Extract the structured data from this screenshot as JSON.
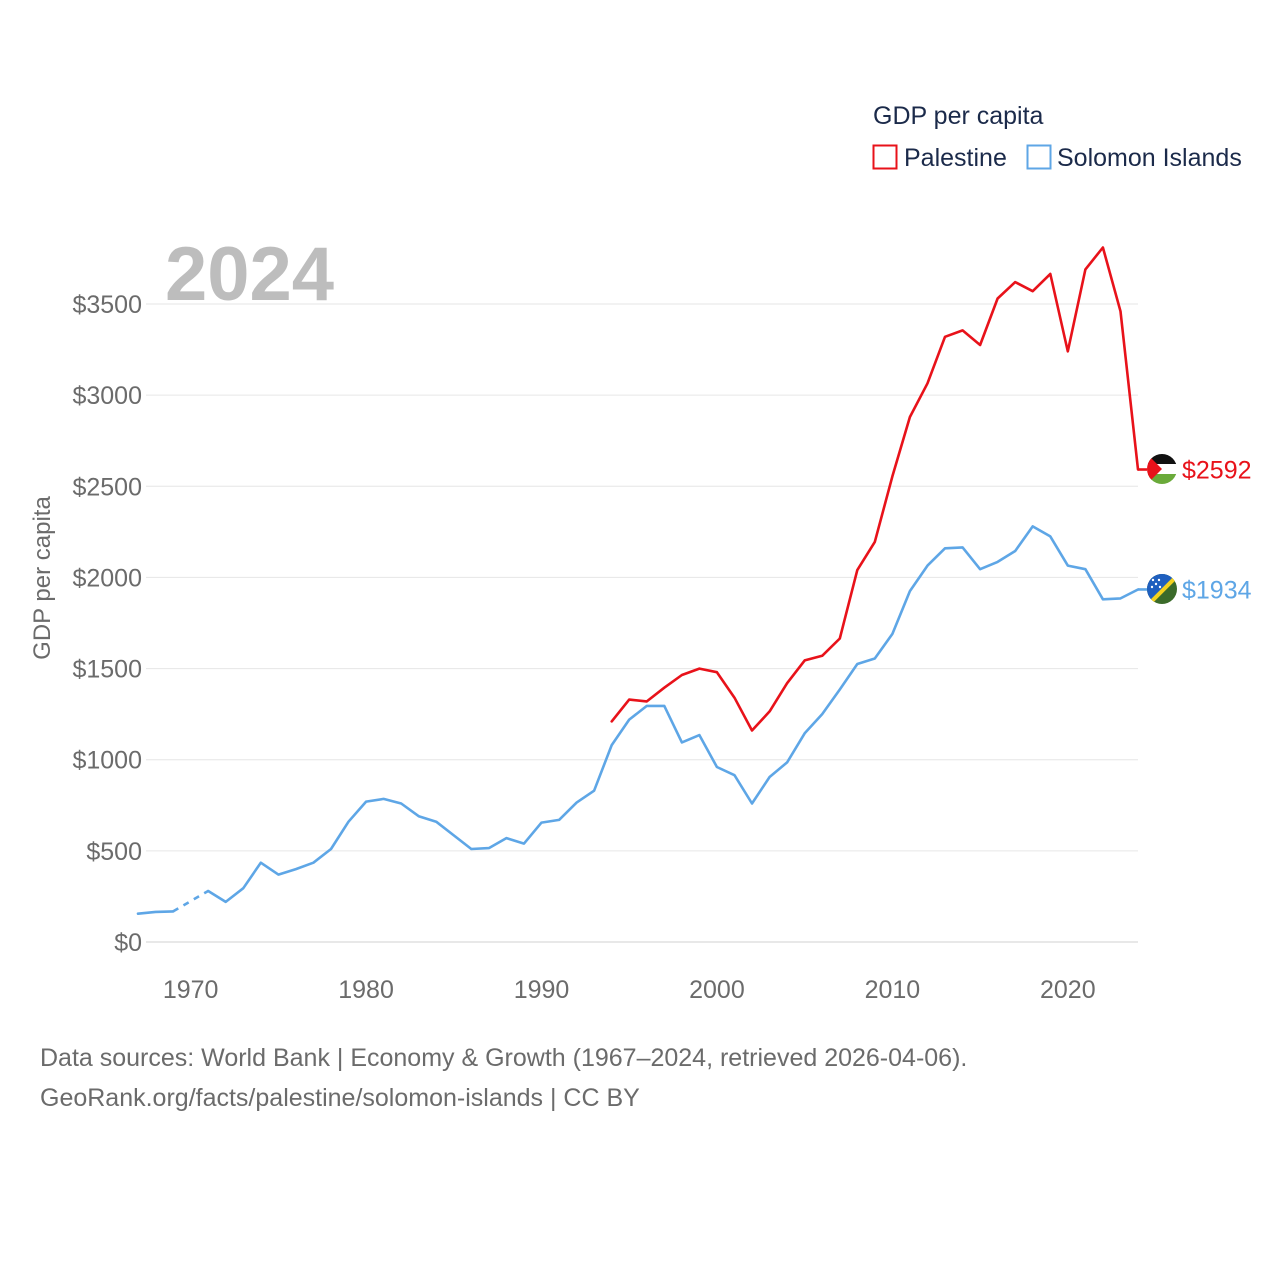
{
  "chart_data": {
    "type": "line",
    "title": "",
    "year_label": "2024",
    "legend": {
      "title": "GDP per capita",
      "placement": "top-right",
      "entries": [
        {
          "name": "Palestine",
          "color": "#e8121a"
        },
        {
          "name": "Solomon Islands",
          "color": "#5ea6e6"
        }
      ]
    },
    "ylabel": "GDP per capita",
    "xlabel": "",
    "ylim": [
      0,
      3500
    ],
    "xlim": [
      1967,
      2024
    ],
    "y_ticks": [
      {
        "value": 0,
        "label": "$0"
      },
      {
        "value": 500,
        "label": "$500"
      },
      {
        "value": 1000,
        "label": "$1000"
      },
      {
        "value": 1500,
        "label": "$1500"
      },
      {
        "value": 2000,
        "label": "$2000"
      },
      {
        "value": 2500,
        "label": "$2500"
      },
      {
        "value": 3000,
        "label": "$3000"
      },
      {
        "value": 3500,
        "label": "$3500"
      }
    ],
    "x_ticks": [
      {
        "value": 1970,
        "label": "1970"
      },
      {
        "value": 1980,
        "label": "1980"
      },
      {
        "value": 1990,
        "label": "1990"
      },
      {
        "value": 2000,
        "label": "2000"
      },
      {
        "value": 2010,
        "label": "2010"
      },
      {
        "value": 2020,
        "label": "2020"
      }
    ],
    "grid": true,
    "series": [
      {
        "name": "Palestine",
        "color": "#e8121a",
        "end_label": "$2592",
        "flag": "palestine-flag",
        "points": [
          [
            1994,
            1210
          ],
          [
            1995,
            1330
          ],
          [
            1996,
            1320
          ],
          [
            1997,
            1395
          ],
          [
            1998,
            1465
          ],
          [
            1999,
            1500
          ],
          [
            2000,
            1480
          ],
          [
            2001,
            1340
          ],
          [
            2002,
            1160
          ],
          [
            2003,
            1265
          ],
          [
            2004,
            1420
          ],
          [
            2005,
            1545
          ],
          [
            2006,
            1570
          ],
          [
            2007,
            1665
          ],
          [
            2008,
            2040
          ],
          [
            2009,
            2195
          ],
          [
            2010,
            2555
          ],
          [
            2011,
            2880
          ],
          [
            2012,
            3065
          ],
          [
            2013,
            3320
          ],
          [
            2014,
            3355
          ],
          [
            2015,
            3275
          ],
          [
            2016,
            3530
          ],
          [
            2017,
            3620
          ],
          [
            2018,
            3570
          ],
          [
            2019,
            3665
          ],
          [
            2020,
            3240
          ],
          [
            2021,
            3690
          ],
          [
            2022,
            3810
          ],
          [
            2023,
            3460
          ],
          [
            2024,
            2592
          ]
        ]
      },
      {
        "name": "Solomon Islands",
        "color": "#5ea6e6",
        "end_label": "$1934",
        "flag": "solomon-islands-flag",
        "gap_after_year": 1969,
        "points": [
          [
            1967,
            155
          ],
          [
            1968,
            165
          ],
          [
            1969,
            168
          ],
          [
            1971,
            280
          ],
          [
            1972,
            220
          ],
          [
            1973,
            295
          ],
          [
            1974,
            435
          ],
          [
            1975,
            370
          ],
          [
            1976,
            400
          ],
          [
            1977,
            435
          ],
          [
            1978,
            510
          ],
          [
            1979,
            660
          ],
          [
            1980,
            770
          ],
          [
            1981,
            785
          ],
          [
            1982,
            760
          ],
          [
            1983,
            690
          ],
          [
            1984,
            660
          ],
          [
            1985,
            585
          ],
          [
            1986,
            510
          ],
          [
            1987,
            515
          ],
          [
            1988,
            570
          ],
          [
            1989,
            540
          ],
          [
            1990,
            655
          ],
          [
            1991,
            670
          ],
          [
            1992,
            765
          ],
          [
            1993,
            830
          ],
          [
            1994,
            1080
          ],
          [
            1995,
            1220
          ],
          [
            1996,
            1295
          ],
          [
            1997,
            1295
          ],
          [
            1998,
            1095
          ],
          [
            1999,
            1135
          ],
          [
            2000,
            960
          ],
          [
            2001,
            915
          ],
          [
            2002,
            760
          ],
          [
            2003,
            905
          ],
          [
            2004,
            985
          ],
          [
            2005,
            1145
          ],
          [
            2006,
            1250
          ],
          [
            2007,
            1385
          ],
          [
            2008,
            1525
          ],
          [
            2009,
            1555
          ],
          [
            2010,
            1690
          ],
          [
            2011,
            1925
          ],
          [
            2012,
            2065
          ],
          [
            2013,
            2160
          ],
          [
            2014,
            2165
          ],
          [
            2015,
            2045
          ],
          [
            2016,
            2085
          ],
          [
            2017,
            2145
          ],
          [
            2018,
            2280
          ],
          [
            2019,
            2225
          ],
          [
            2020,
            2065
          ],
          [
            2021,
            2045
          ],
          [
            2022,
            1880
          ],
          [
            2023,
            1885
          ],
          [
            2024,
            1934
          ]
        ]
      }
    ],
    "y_max_value_for_axis_extent": 3850
  },
  "footer": {
    "line1": "Data sources: World Bank | Economy & Growth (1967–2024, retrieved 2026-04-06).",
    "line2": "GeoRank.org/facts/palestine/solomon-islands | CC BY"
  }
}
